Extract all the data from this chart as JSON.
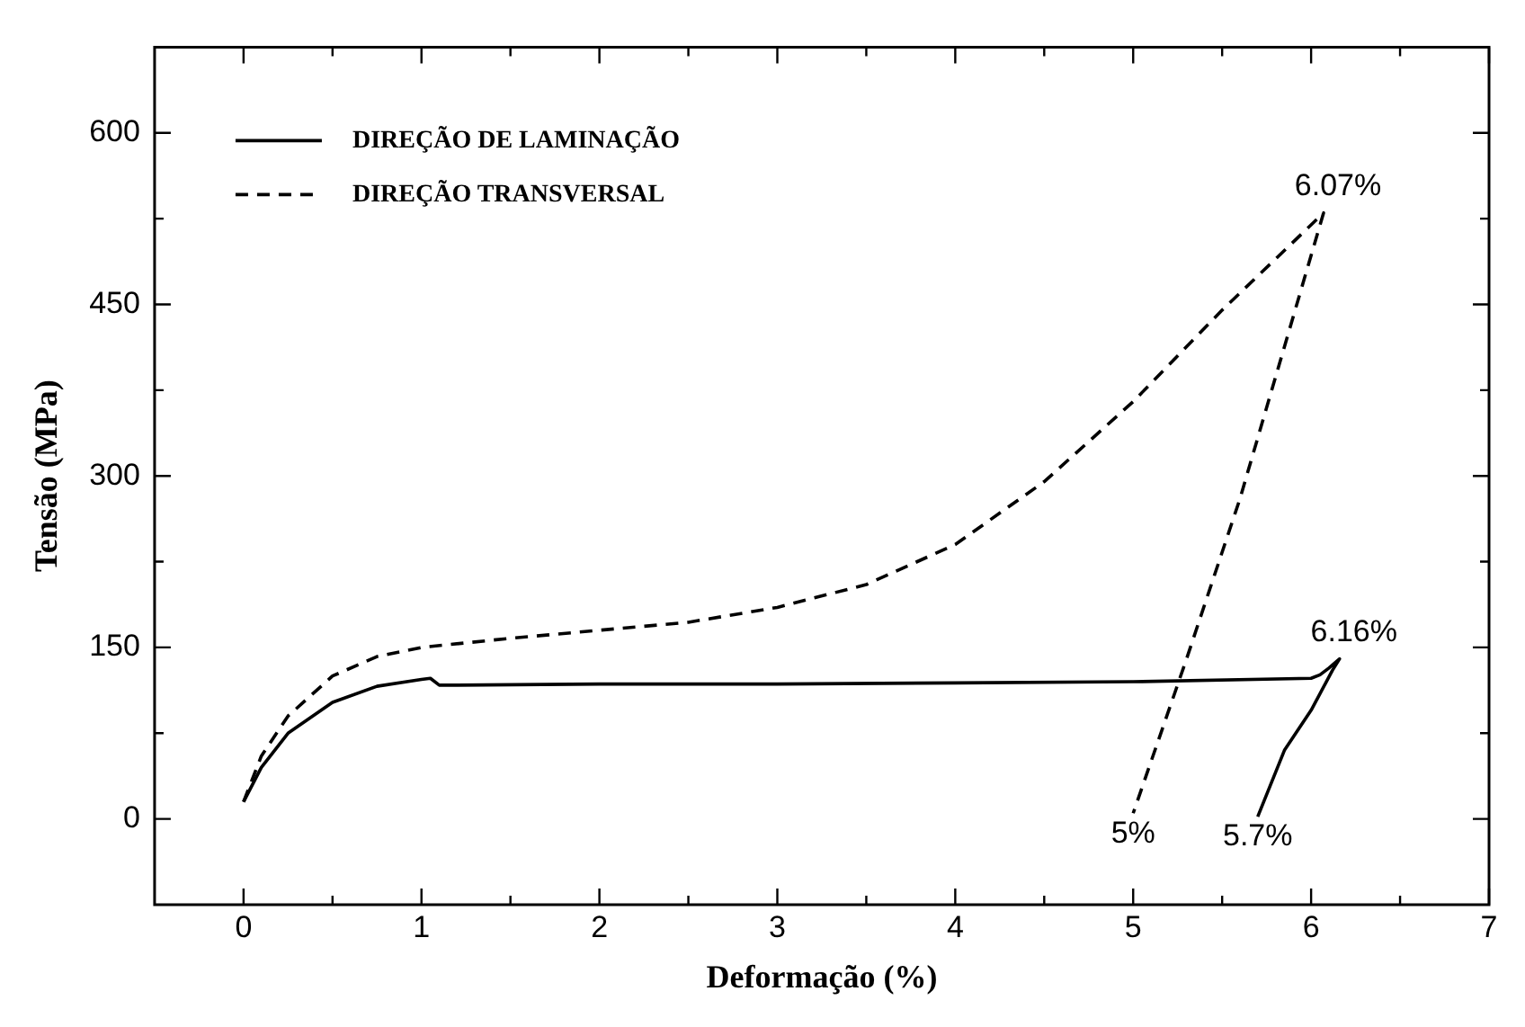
{
  "chart_data": {
    "type": "line",
    "xlabel": "Deformação (%)",
    "ylabel": "Tensão (MPa)",
    "xlim": [
      -0.5,
      7
    ],
    "ylim": [
      -75,
      675
    ],
    "xticks": [
      0,
      {
        "value": 0.5,
        "label": null
      },
      1,
      {
        "value": 1.5,
        "label": null
      },
      2,
      {
        "value": 2.5,
        "label": null
      },
      3,
      {
        "value": 3.5,
        "label": null
      },
      4,
      {
        "value": 4.5,
        "label": null
      },
      5,
      {
        "value": 5.5,
        "label": null
      },
      6,
      {
        "value": 6.5,
        "label": null
      },
      7
    ],
    "yticks": [
      0,
      {
        "value": 75,
        "label": null
      },
      150,
      {
        "value": 225,
        "label": null
      },
      300,
      {
        "value": 375,
        "label": null
      },
      450,
      {
        "value": 525,
        "label": null
      },
      600
    ],
    "grid": false,
    "legend": "top left",
    "marker": "none",
    "series": [
      {
        "name": "DIREÇÃO DE LAMINAÇÃO",
        "color": "#000000",
        "line_style": "solid",
        "x": [
          0,
          0.1,
          0.25,
          0.5,
          0.75,
          1.0,
          1.05,
          1.1,
          1.2,
          2,
          3,
          4,
          5,
          6,
          6.05,
          6.1,
          6.16,
          6.12,
          6.0,
          5.85,
          5.7
        ],
        "values": [
          15,
          45,
          75,
          102,
          116,
          122,
          123,
          117,
          117,
          118,
          118,
          119,
          120,
          123,
          126,
          132,
          140,
          130,
          95,
          60,
          2
        ]
      },
      {
        "name": "DIREÇÃO TRANSVERSAL",
        "color": "#000000",
        "line_style": "dashed",
        "x": [
          0,
          0.1,
          0.25,
          0.5,
          0.75,
          1,
          1.5,
          2,
          2.5,
          3,
          3.5,
          4,
          4.5,
          5,
          5.5,
          6.07,
          5.6,
          5.3,
          5.0
        ],
        "values": [
          15,
          55,
          90,
          125,
          142,
          150,
          158,
          165,
          172,
          185,
          205,
          240,
          295,
          365,
          445,
          530,
          280,
          140,
          5
        ]
      }
    ],
    "annotations": [
      {
        "text": "6.07%",
        "x": 6.07,
        "y": 530
      },
      {
        "text": "6.16%",
        "x": 6.16,
        "y": 140
      },
      {
        "text": "5%",
        "x": 5.0,
        "y": 5
      },
      {
        "text": "5.7%",
        "x": 5.7,
        "y": 2
      }
    ]
  }
}
